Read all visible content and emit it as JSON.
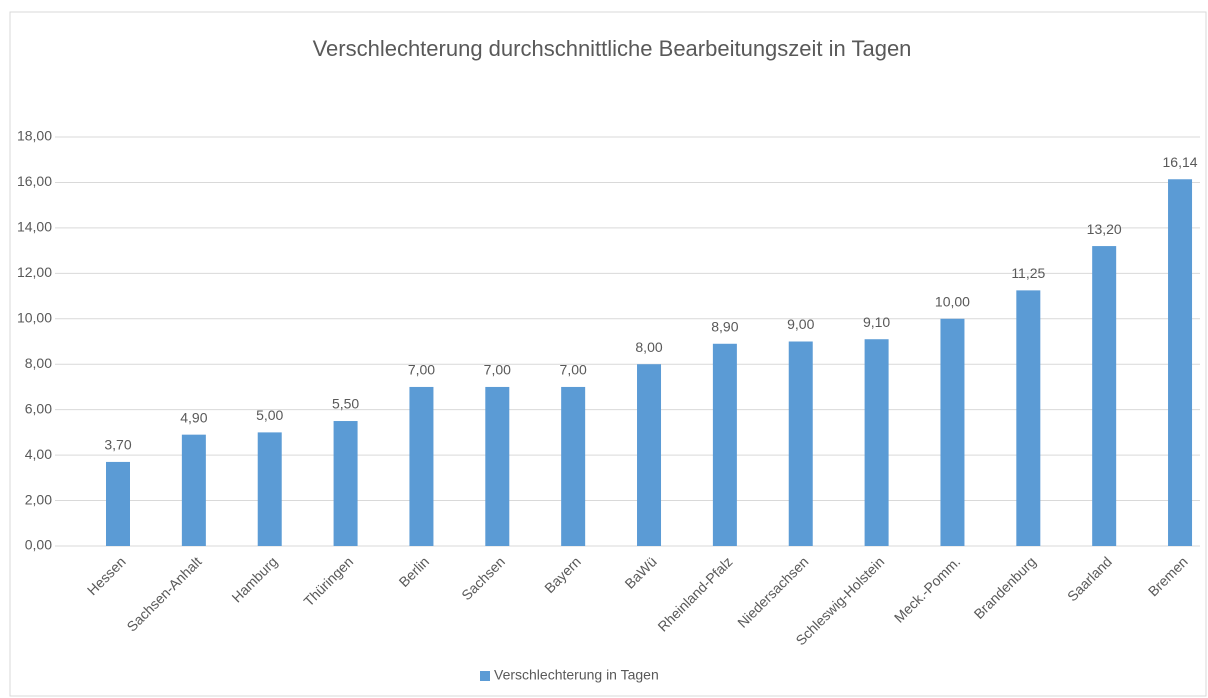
{
  "chart_data": {
    "type": "bar",
    "title": "Verschlechterung durchschnittliche Bearbeitungszeit in Tagen",
    "categories": [
      "Hessen",
      "Sachsen-Anhalt",
      "Hamburg",
      "Thüringen",
      "Berlin",
      "Sachsen",
      "Bayern",
      "BaWü",
      "Rheinland-Pfalz",
      "Niedersachsen",
      "Schleswig-Holstein",
      "Meck.-Pomm.",
      "Brandenburg",
      "Saarland",
      "Bremen"
    ],
    "series": [
      {
        "name": "Verschlechterung in Tagen",
        "color": "#5b9bd5",
        "values": [
          3.7,
          4.9,
          5.0,
          5.5,
          7.0,
          7.0,
          7.0,
          8.0,
          8.9,
          9.0,
          9.1,
          10.0,
          11.25,
          13.2,
          16.14
        ],
        "value_labels": [
          "3,70",
          "4,90",
          "5,00",
          "5,50",
          "7,00",
          "7,00",
          "7,00",
          "8,00",
          "8,90",
          "9,00",
          "9,10",
          "10,00",
          "11,25",
          "13,20",
          "16,14"
        ]
      }
    ],
    "ylim": [
      0,
      18
    ],
    "yticks": [
      {
        "value": 0,
        "label": "0,00"
      },
      {
        "value": 2,
        "label": "2,00"
      },
      {
        "value": 4,
        "label": "4,00"
      },
      {
        "value": 6,
        "label": "6,00"
      },
      {
        "value": 8,
        "label": "8,00"
      },
      {
        "value": 10,
        "label": "10,00"
      },
      {
        "value": 12,
        "label": "12,00"
      },
      {
        "value": 14,
        "label": "14,00"
      },
      {
        "value": 16,
        "label": "16,00"
      },
      {
        "value": 18,
        "label": "18,00"
      }
    ],
    "grid": true,
    "legend": "bottom"
  }
}
